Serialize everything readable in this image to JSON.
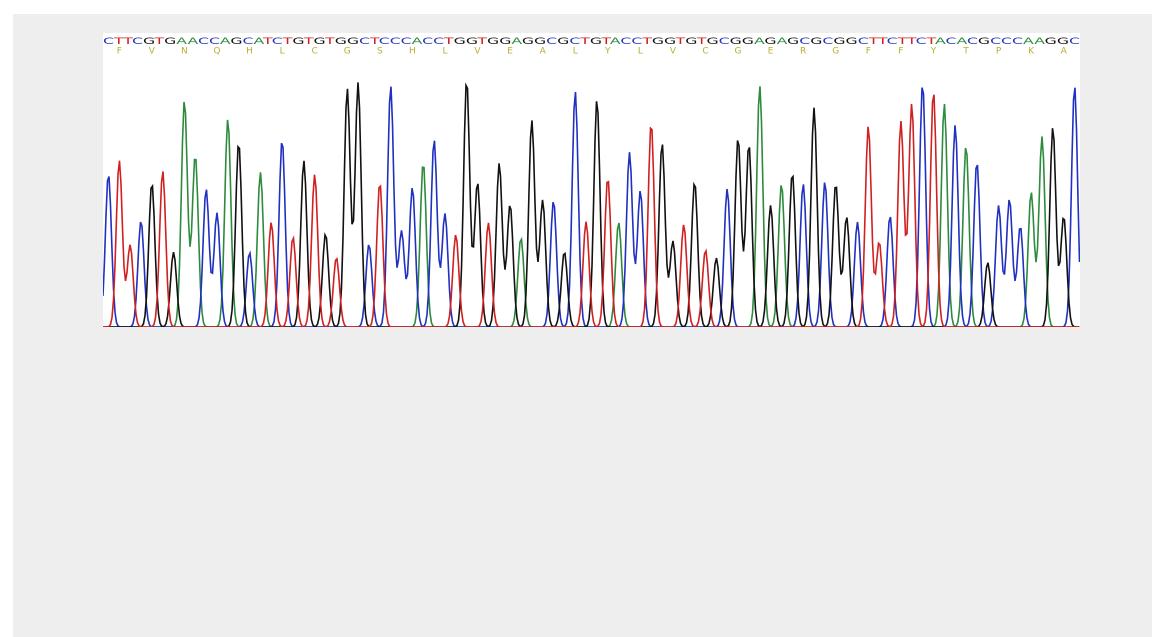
{
  "trace": {
    "sequence": "CTTCGTGAACCAGCATCTGTGTGGCTCCCACCTGGTGGAGGCGCTGTACCTGGTGTGCGGAGAGCGCGGCTTCTTCTACACGCCCAAGGC",
    "residues": [
      "F",
      "V",
      "N",
      "Q",
      "H",
      "L",
      "C",
      "G",
      "S",
      "H",
      "L",
      "V",
      "E",
      "A",
      "L",
      "Y",
      "L",
      "V",
      "C",
      "G",
      "E",
      "R",
      "G",
      "F",
      "F",
      "Y",
      "T",
      "P",
      "K",
      "A"
    ]
  }
}
